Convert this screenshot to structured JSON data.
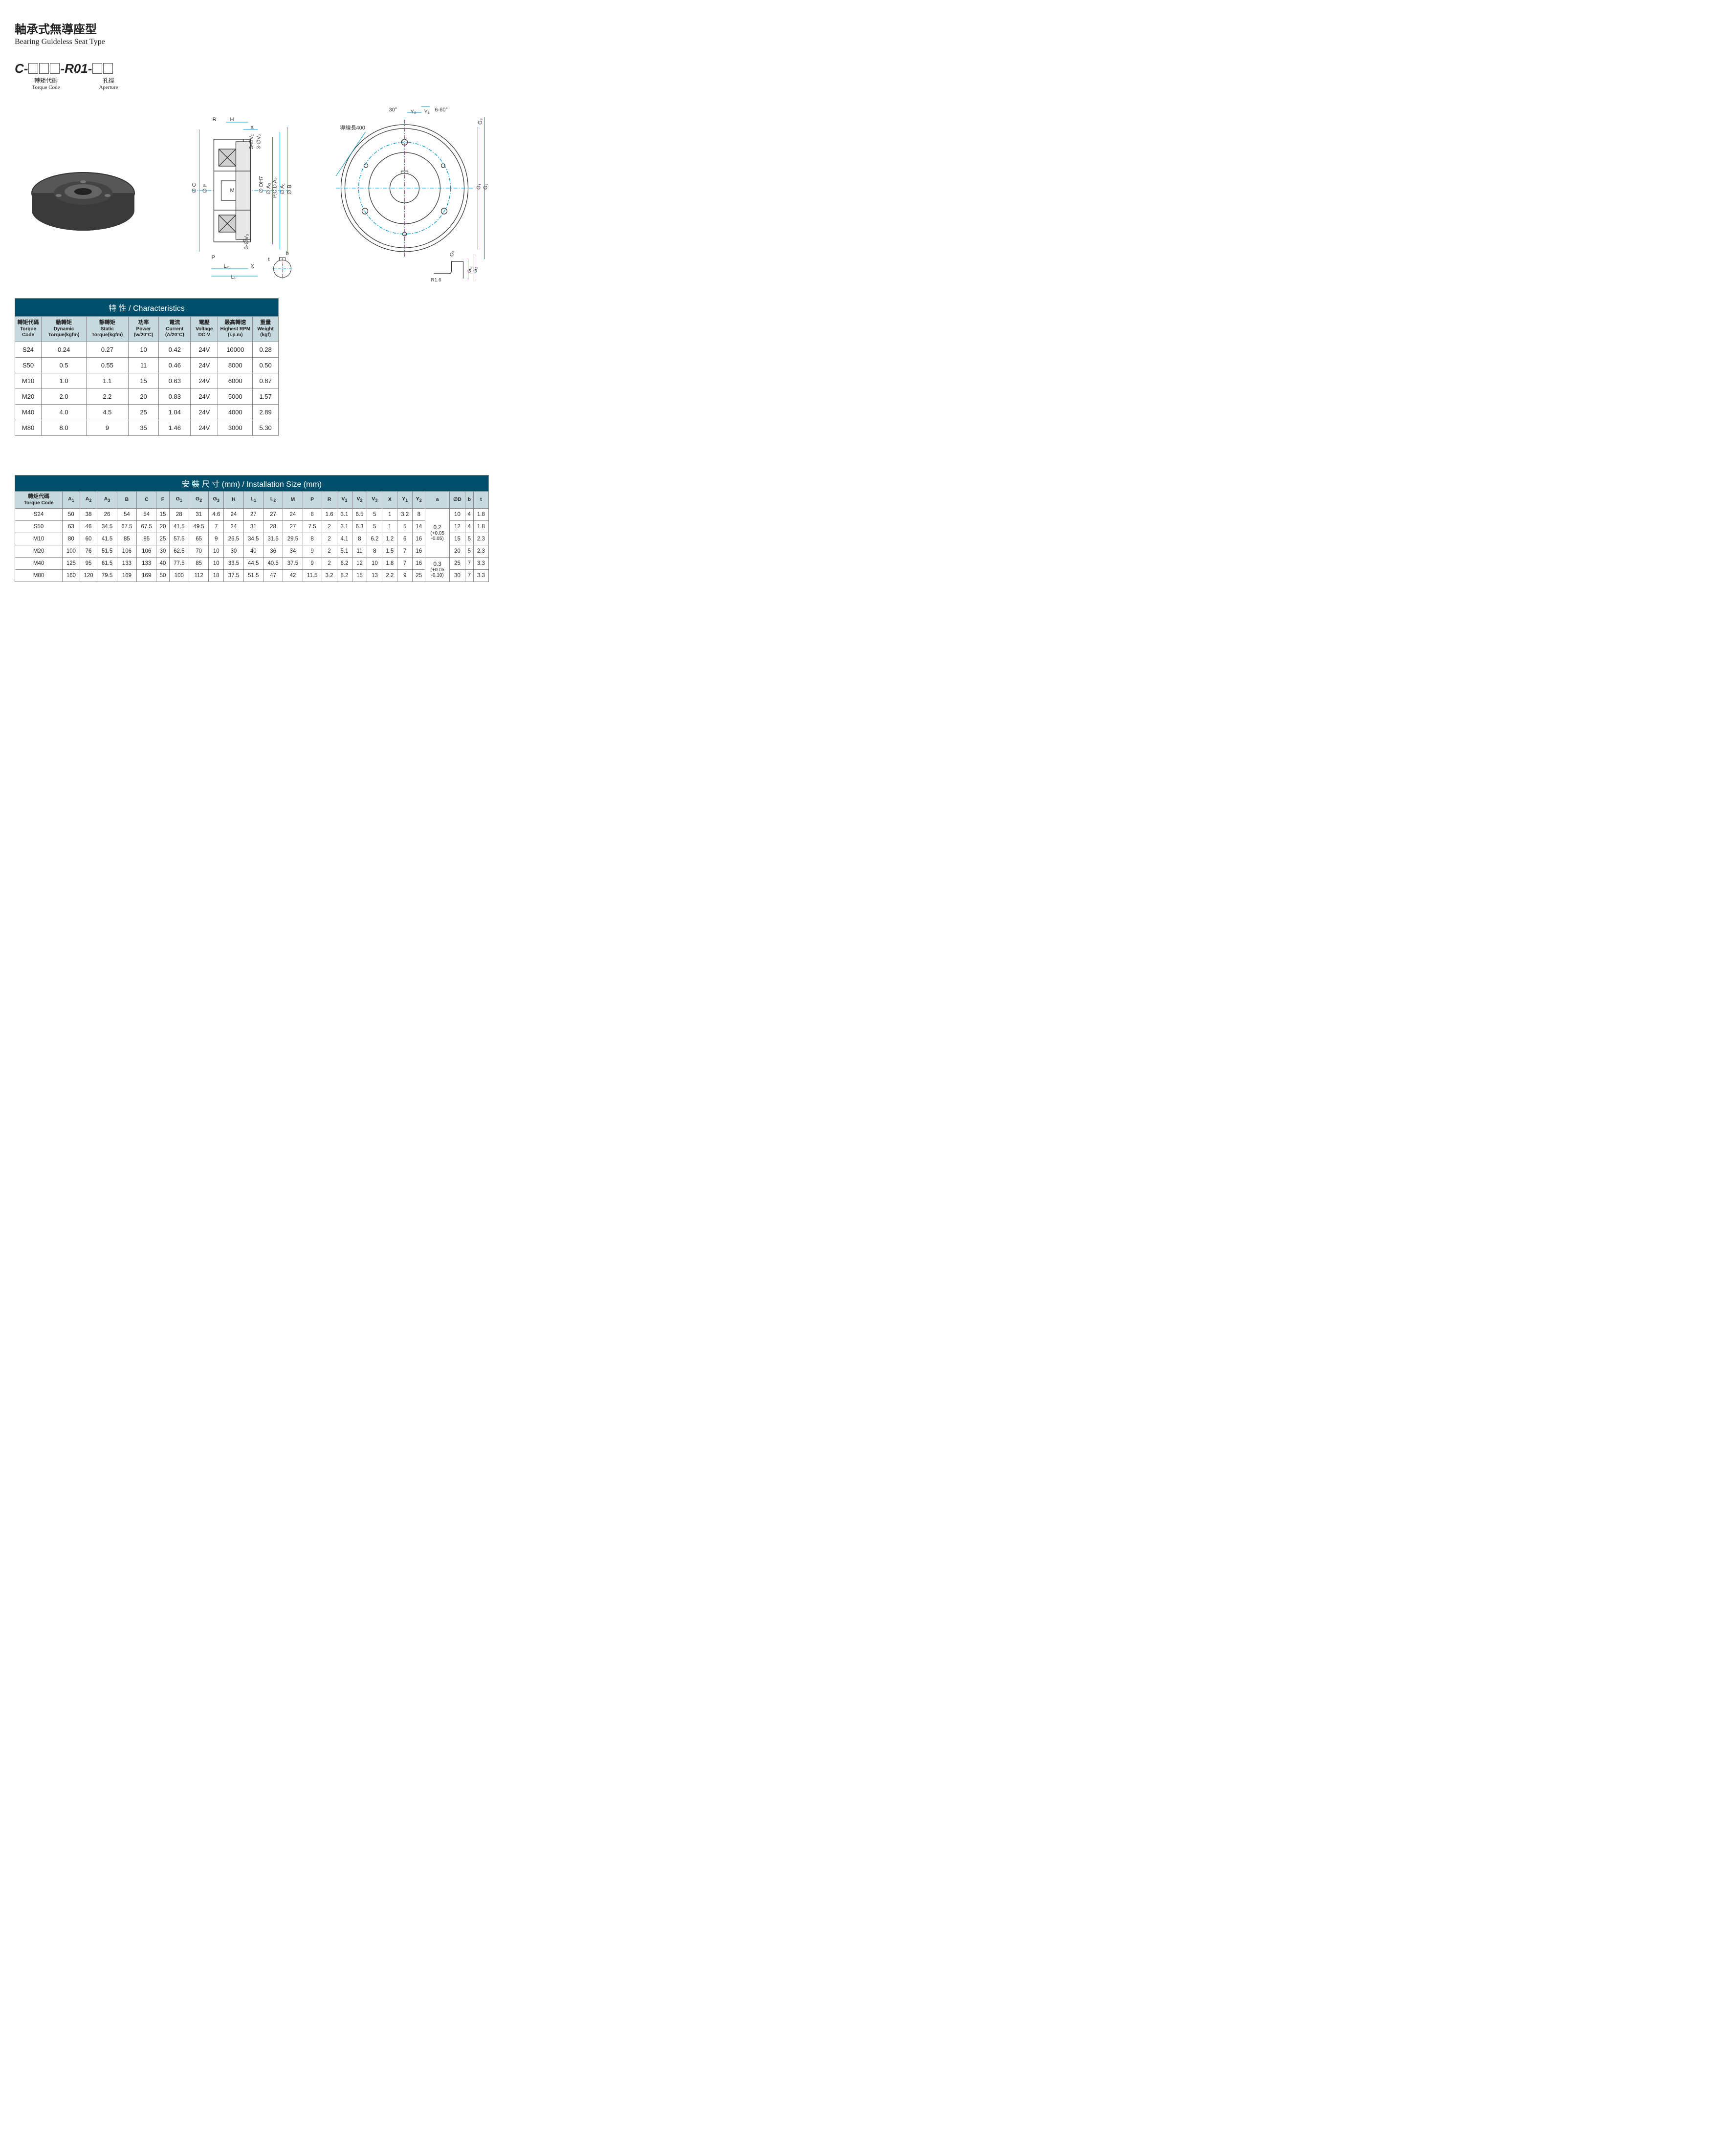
{
  "title": {
    "cn": "軸承式無導座型",
    "en": "Bearing Guideless Seat Type"
  },
  "partcode": {
    "prefix": "C-",
    "mid": "-R01-",
    "torque_label_cn": "轉矩代碼",
    "torque_label_en": "Torque Code",
    "aperture_label_cn": "孔徑",
    "aperture_label_en": "Aperture"
  },
  "diagram": {
    "wire_label": "導線長400",
    "angle1": "30°",
    "angle2": "6-60°",
    "corner": "R1.6",
    "corner2": "S24"
  },
  "char_table": {
    "title": "特 性 / Characteristics",
    "headers": [
      {
        "cn": "轉矩代碼",
        "en": "Torque Code"
      },
      {
        "cn": "動轉矩",
        "en": "Dynamic Torque(kgfm)"
      },
      {
        "cn": "靜轉矩",
        "en": "Static Torque(kgfm)"
      },
      {
        "cn": "功率",
        "en": "Power (w/20°C)"
      },
      {
        "cn": "電流",
        "en": "Current (A/20°C)"
      },
      {
        "cn": "電壓",
        "en": "Voltage DC-V"
      },
      {
        "cn": "最高轉速",
        "en": "Highest RPM (r.p.m)"
      },
      {
        "cn": "重量",
        "en": "Weight (kgf)"
      }
    ],
    "rows": [
      [
        "S24",
        "0.24",
        "0.27",
        "10",
        "0.42",
        "24V",
        "10000",
        "0.28"
      ],
      [
        "S50",
        "0.5",
        "0.55",
        "11",
        "0.46",
        "24V",
        "8000",
        "0.50"
      ],
      [
        "M10",
        "1.0",
        "1.1",
        "15",
        "0.63",
        "24V",
        "6000",
        "0.87"
      ],
      [
        "M20",
        "2.0",
        "2.2",
        "20",
        "0.83",
        "24V",
        "5000",
        "1.57"
      ],
      [
        "M40",
        "4.0",
        "4.5",
        "25",
        "1.04",
        "24V",
        "4000",
        "2.89"
      ],
      [
        "M80",
        "8.0",
        "9",
        "35",
        "1.46",
        "24V",
        "3000",
        "5.30"
      ]
    ]
  },
  "inst_table": {
    "title": "安 裝 尺 寸 (mm) / Installation Size (mm)",
    "first_header": {
      "cn": "轉矩代碼",
      "en": "Torque Code"
    },
    "cols": [
      "A1",
      "A2",
      "A3",
      "B",
      "C",
      "F",
      "G1",
      "G2",
      "G3",
      "H",
      "L1",
      "L2",
      "M",
      "P",
      "R",
      "V1",
      "V2",
      "V3",
      "X",
      "Y1",
      "Y2",
      "a",
      "∅D",
      "b",
      "t"
    ],
    "rows": [
      [
        "S24",
        "50",
        "38",
        "26",
        "54",
        "54",
        "15",
        "28",
        "31",
        "4.6",
        "24",
        "27",
        "27",
        "24",
        "8",
        "1.6",
        "3.1",
        "6.5",
        "5",
        "1",
        "3.2",
        "8",
        "",
        "10",
        "4",
        "1.8"
      ],
      [
        "S50",
        "63",
        "46",
        "34.5",
        "67.5",
        "67.5",
        "20",
        "41.5",
        "49.5",
        "7",
        "24",
        "31",
        "28",
        "27",
        "7.5",
        "2",
        "3.1",
        "6.3",
        "5",
        "1",
        "5",
        "14",
        "",
        "12",
        "4",
        "1.8"
      ],
      [
        "M10",
        "80",
        "60",
        "41.5",
        "85",
        "85",
        "25",
        "57.5",
        "65",
        "9",
        "26.5",
        "34.5",
        "31.5",
        "29.5",
        "8",
        "2",
        "4.1",
        "8",
        "6.2",
        "1.2",
        "6",
        "16",
        "",
        "15",
        "5",
        "2.3"
      ],
      [
        "M20",
        "100",
        "76",
        "51.5",
        "106",
        "106",
        "30",
        "62.5",
        "70",
        "10",
        "30",
        "40",
        "36",
        "34",
        "9",
        "2",
        "5.1",
        "11",
        "8",
        "1.5",
        "7",
        "16",
        "",
        "20",
        "5",
        "2.3"
      ],
      [
        "M40",
        "125",
        "95",
        "61.5",
        "133",
        "133",
        "40",
        "77.5",
        "85",
        "10",
        "33.5",
        "44.5",
        "40.5",
        "37.5",
        "9",
        "2",
        "6.2",
        "12",
        "10",
        "1.8",
        "7",
        "16",
        "",
        "25",
        "7",
        "3.3"
      ],
      [
        "M80",
        "160",
        "120",
        "79.5",
        "169",
        "169",
        "50",
        "100",
        "112",
        "18",
        "37.5",
        "51.5",
        "47",
        "42",
        "11.5",
        "3.2",
        "8.2",
        "15",
        "13",
        "2.2",
        "9",
        "25",
        "",
        "30",
        "7",
        "3.3"
      ]
    ],
    "a_merge1": {
      "val": "0.2",
      "tol": "( +0.05 / -0.05 )"
    },
    "a_merge2": {
      "val": "0.3",
      "tol": "( +0.05 / -0.10 )"
    }
  },
  "colors": {
    "header_bg": "#00506b",
    "subhead_bg": "#c5d9de",
    "line": "#0099cc"
  }
}
